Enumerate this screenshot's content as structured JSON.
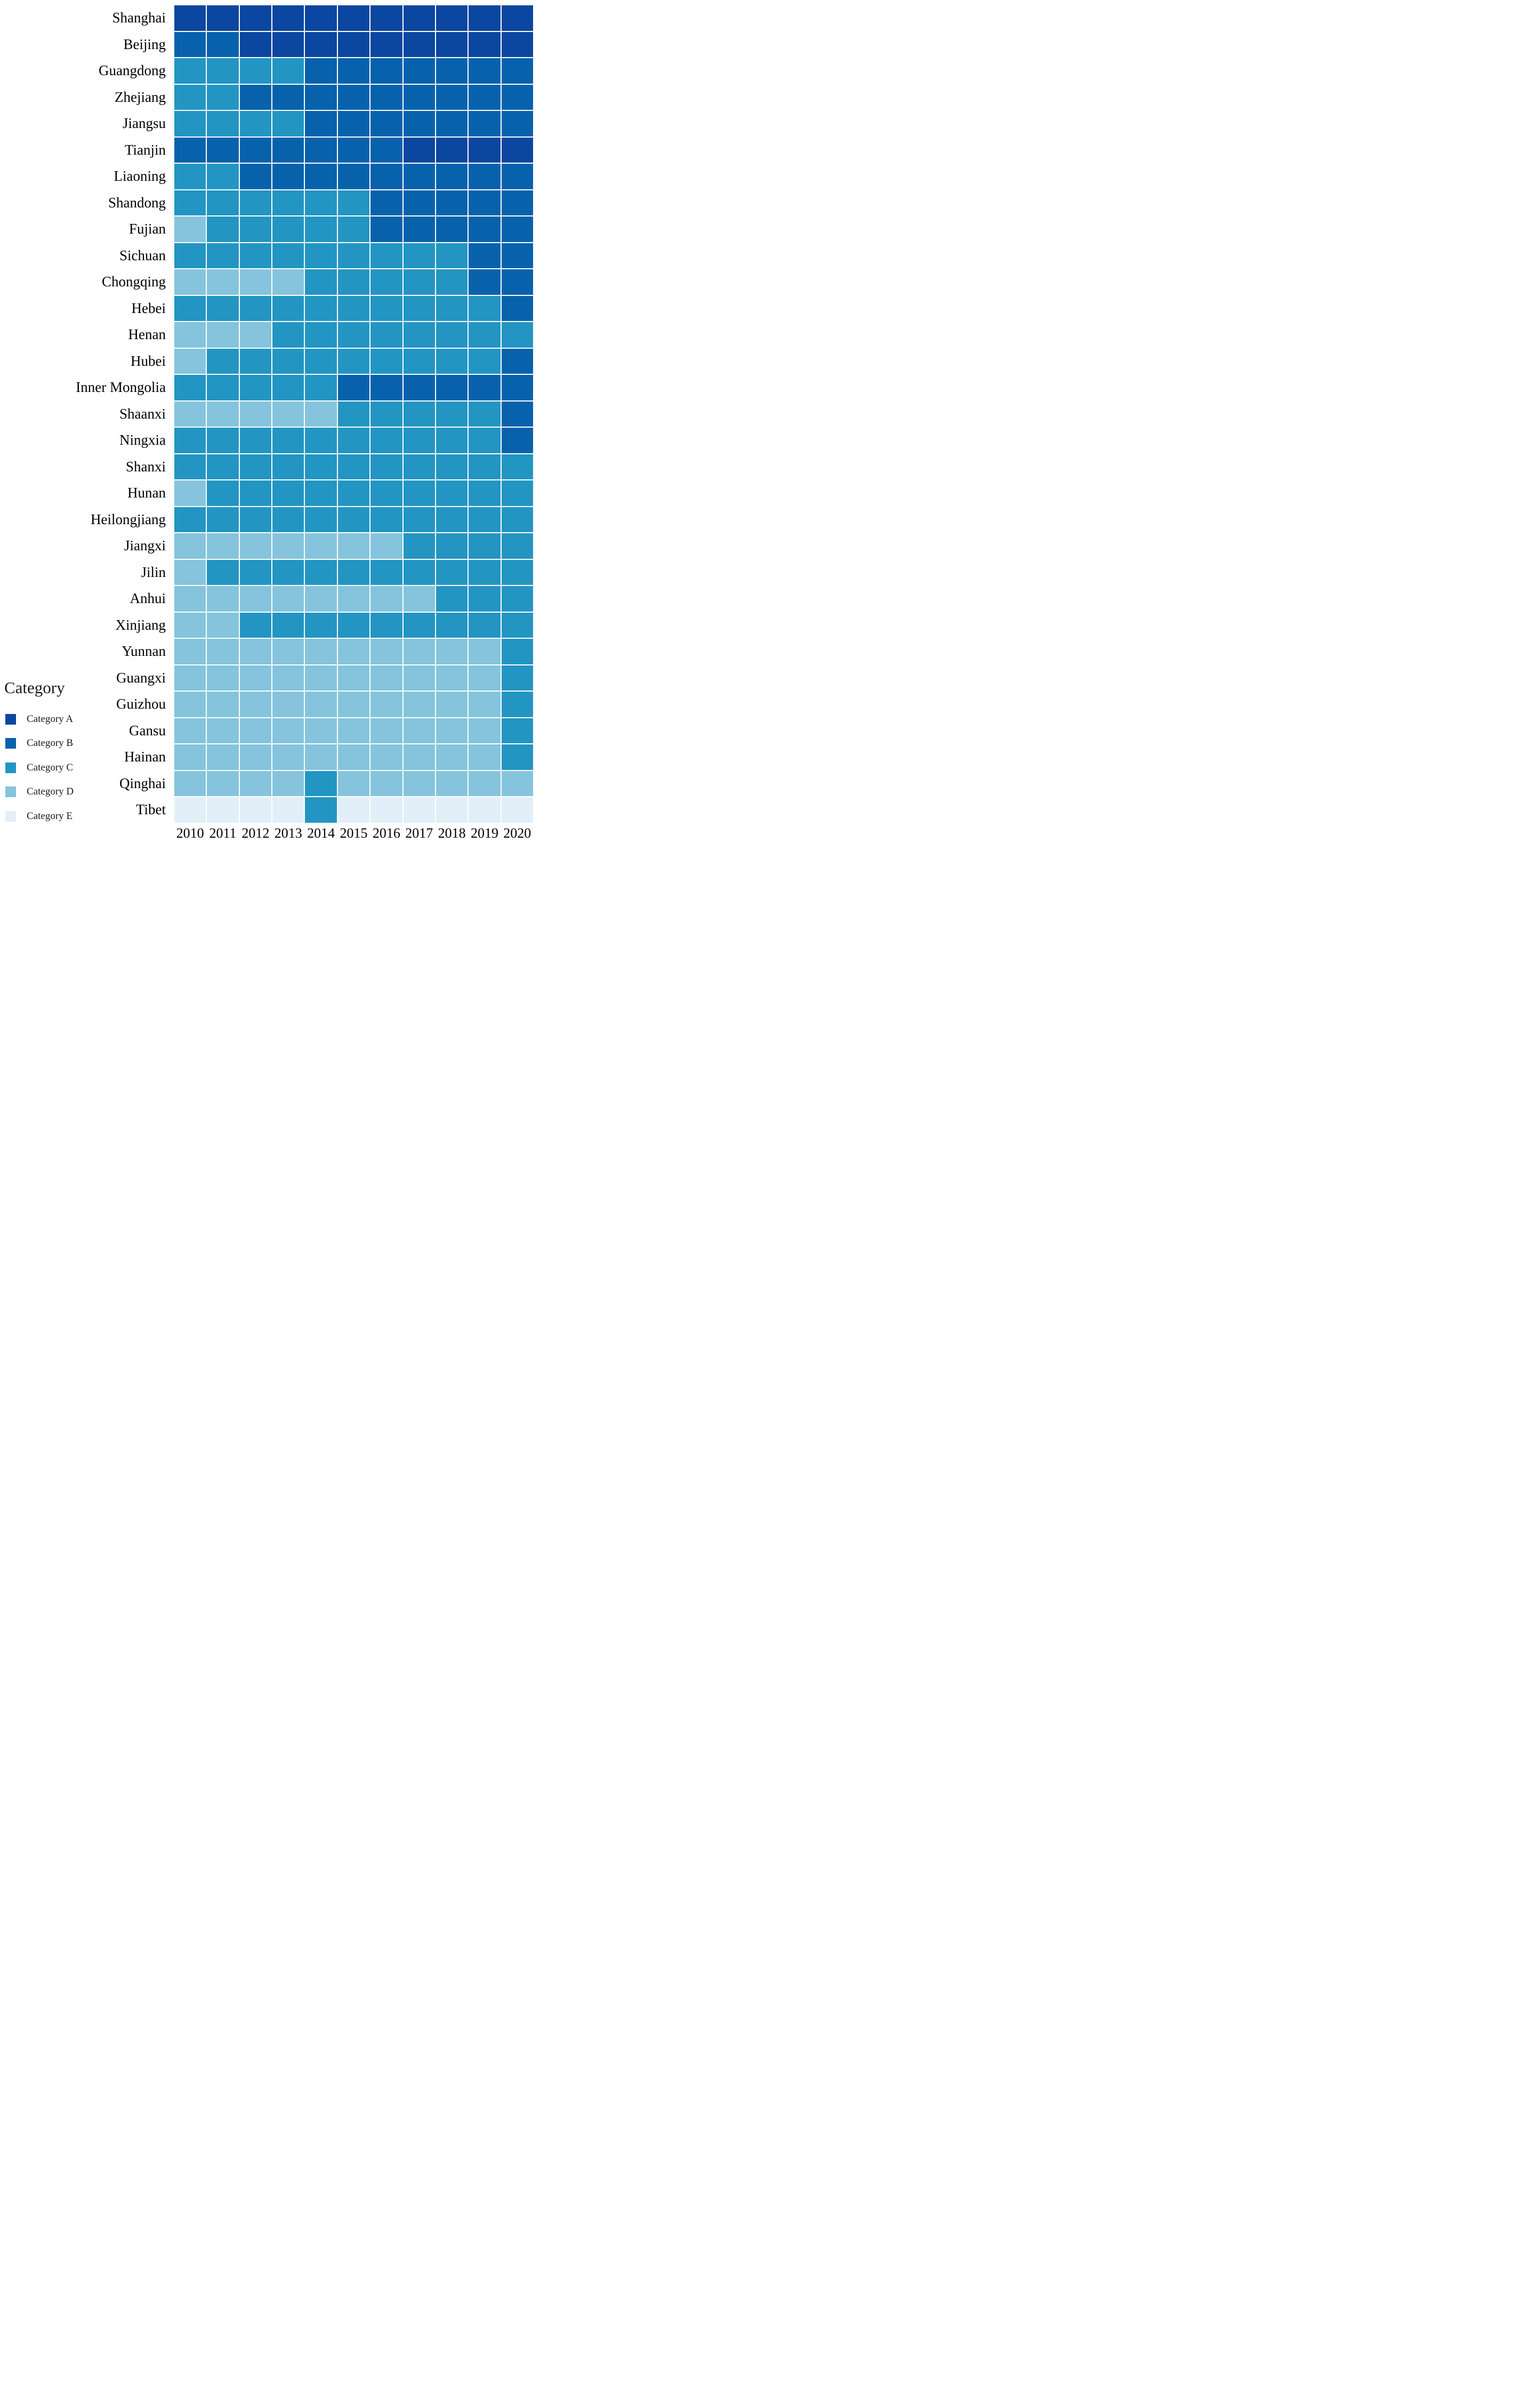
{
  "chart_data": {
    "type": "heatmap",
    "title": "",
    "legend_title": "Category",
    "legend_position": "bottom-left",
    "grid_lines": "white",
    "years": [
      "2010",
      "2011",
      "2012",
      "2013",
      "2014",
      "2015",
      "2016",
      "2017",
      "2018",
      "2019",
      "2020"
    ],
    "provinces": [
      "Shanghai",
      "Beijing",
      "Guangdong",
      "Zhejiang",
      "Jiangsu",
      "Tianjin",
      "Liaoning",
      "Shandong",
      "Fujian",
      "Sichuan",
      "Chongqing",
      "Hebei",
      "Henan",
      "Hubei",
      "Inner Mongolia",
      "Shaanxi",
      "Ningxia",
      "Shanxi",
      "Hunan",
      "Heilongjiang",
      "Jiangxi",
      "Jilin",
      "Anhui",
      "Xinjiang",
      "Yunnan",
      "Guangxi",
      "Guizhou",
      "Gansu",
      "Hainan",
      "Qinghai",
      "Tibet"
    ],
    "colors": {
      "A": "#0B46A0",
      "B": "#0862AB",
      "C": "#2395C3",
      "D": "#85C4DC",
      "E": "#E2EFF8"
    },
    "legend": {
      "items": [
        {
          "key": "A",
          "label": "Category A"
        },
        {
          "key": "B",
          "label": "Category B"
        },
        {
          "key": "C",
          "label": "Category C"
        },
        {
          "key": "D",
          "label": "Category D"
        },
        {
          "key": "E",
          "label": "Category E"
        }
      ]
    },
    "grid": [
      "AAAAAAAAAAA",
      "BBAAAAAAAAA",
      "CCCCBBBBBBB",
      "CCBBBBBBBBB",
      "CCCCBBBBBBB",
      "BBBBBBBAAAA",
      "CCBBBBBBBBB",
      "CCCCCCBBBBB",
      "DCCCCCBBBBB",
      "CCCCCCCCCBB",
      "DDDDCCCCCBB",
      "CCCCCCCCCCB",
      "DDDCCCCCCCC",
      "DCCCCCCCCCB",
      "CCCCCBBBBBB",
      "DDDDDCCCCCB",
      "CCCCCCCCCCB",
      "CCCCCCCCCCC",
      "DCCCCCCCCCC",
      "CCCCCCCCCCC",
      "DDDDDDDCCCC",
      "DCCCCCCCCCC",
      "DDDDDDDDCCC",
      "DDCCCCCCCCC",
      "DDDDDDDDDDC",
      "DDDDDDDDDDC",
      "DDDDDDDDDDC",
      "DDDDDDDDDDC",
      "DDDDDDDDDDC",
      "DDDDCDDDDDD",
      "EEEECEEEEEE"
    ]
  }
}
